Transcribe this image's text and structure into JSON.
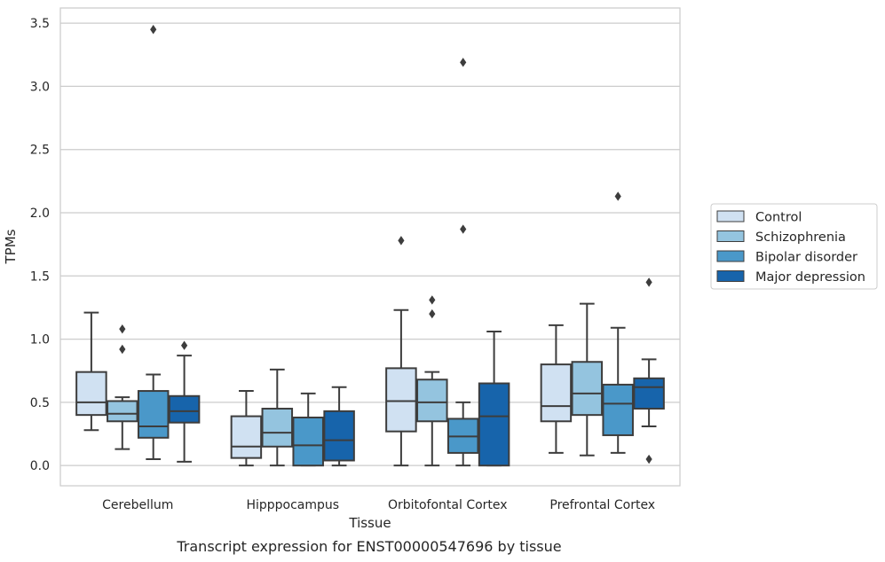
{
  "caption": "Transcript expression for ENST00000547696 by tissue",
  "chart_data": {
    "type": "box",
    "title": "",
    "xlabel": "Tissue",
    "ylabel": "TPMs",
    "ylim": [
      -0.16,
      3.62
    ],
    "yticks": [
      "0.0",
      "0.5",
      "1.0",
      "1.5",
      "2.0",
      "2.5",
      "3.0",
      "3.5"
    ],
    "grid": "horizontal",
    "legend_placement": "outside-right",
    "categories": [
      "Cerebellum",
      "Hipppocampus",
      "Orbitofontal Cortex",
      "Prefrontal Cortex"
    ],
    "series": [
      {
        "name": "Control",
        "color": "#d0e1f2",
        "boxes": [
          {
            "whislo": 0.28,
            "q1": 0.4,
            "med": 0.5,
            "q3": 0.74,
            "whishi": 1.21,
            "fliers": []
          },
          {
            "whislo": 0.0,
            "q1": 0.06,
            "med": 0.15,
            "q3": 0.39,
            "whishi": 0.59,
            "fliers": []
          },
          {
            "whislo": 0.0,
            "q1": 0.27,
            "med": 0.51,
            "q3": 0.77,
            "whishi": 1.23,
            "fliers": [
              1.78
            ]
          },
          {
            "whislo": 0.1,
            "q1": 0.35,
            "med": 0.47,
            "q3": 0.8,
            "whishi": 1.11,
            "fliers": []
          }
        ]
      },
      {
        "name": "Schizophrenia",
        "color": "#94c4df",
        "boxes": [
          {
            "whislo": 0.13,
            "q1": 0.35,
            "med": 0.41,
            "q3": 0.51,
            "whishi": 0.54,
            "fliers": [
              0.92,
              1.08
            ]
          },
          {
            "whislo": 0.0,
            "q1": 0.15,
            "med": 0.26,
            "q3": 0.45,
            "whishi": 0.76,
            "fliers": []
          },
          {
            "whislo": 0.0,
            "q1": 0.35,
            "med": 0.5,
            "q3": 0.68,
            "whishi": 0.74,
            "fliers": [
              1.2,
              1.31
            ]
          },
          {
            "whislo": 0.08,
            "q1": 0.4,
            "med": 0.57,
            "q3": 0.82,
            "whishi": 1.28,
            "fliers": []
          }
        ]
      },
      {
        "name": "Bipolar disorder",
        "color": "#4a98c9",
        "boxes": [
          {
            "whislo": 0.05,
            "q1": 0.22,
            "med": 0.31,
            "q3": 0.59,
            "whishi": 0.72,
            "fliers": [
              3.45
            ]
          },
          {
            "whislo": 0.0,
            "q1": 0.0,
            "med": 0.16,
            "q3": 0.38,
            "whishi": 0.57,
            "fliers": []
          },
          {
            "whislo": 0.0,
            "q1": 0.1,
            "med": 0.23,
            "q3": 0.37,
            "whishi": 0.5,
            "fliers": [
              1.87,
              3.19
            ]
          },
          {
            "whislo": 0.1,
            "q1": 0.24,
            "med": 0.49,
            "q3": 0.64,
            "whishi": 1.09,
            "fliers": [
              2.13
            ]
          }
        ]
      },
      {
        "name": "Major depression",
        "color": "#1764ab",
        "boxes": [
          {
            "whislo": 0.03,
            "q1": 0.34,
            "med": 0.43,
            "q3": 0.55,
            "whishi": 0.87,
            "fliers": [
              0.95
            ]
          },
          {
            "whislo": 0.0,
            "q1": 0.04,
            "med": 0.2,
            "q3": 0.43,
            "whishi": 0.62,
            "fliers": []
          },
          {
            "whislo": 0.0,
            "q1": 0.0,
            "med": 0.39,
            "q3": 0.65,
            "whishi": 1.06,
            "fliers": []
          },
          {
            "whislo": 0.31,
            "q1": 0.45,
            "med": 0.62,
            "q3": 0.69,
            "whishi": 0.84,
            "fliers": [
              0.05,
              1.45
            ]
          }
        ]
      }
    ]
  }
}
